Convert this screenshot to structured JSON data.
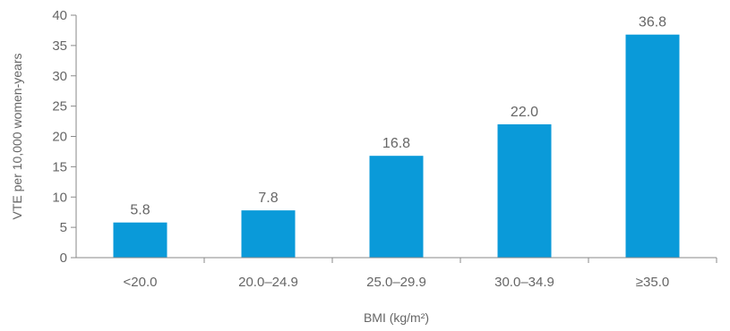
{
  "chart_data": {
    "type": "bar",
    "categories": [
      "<20.0",
      "20.0–24.9",
      "25.0–29.9",
      "30.0–34.9",
      "≥35.0"
    ],
    "values": [
      5.8,
      7.8,
      16.8,
      22.0,
      36.8
    ],
    "data_labels": [
      "5.8",
      "7.8",
      "16.8",
      "22.0",
      "36.8"
    ],
    "xlabel": "BMI (kg/m²)",
    "ylabel": "VTE per 10,000 women-years",
    "ylim": [
      0,
      40
    ],
    "yticks": [
      0,
      5,
      10,
      15,
      20,
      25,
      30,
      35,
      40
    ],
    "bar_color": "#0a9ad9",
    "grid": false
  }
}
